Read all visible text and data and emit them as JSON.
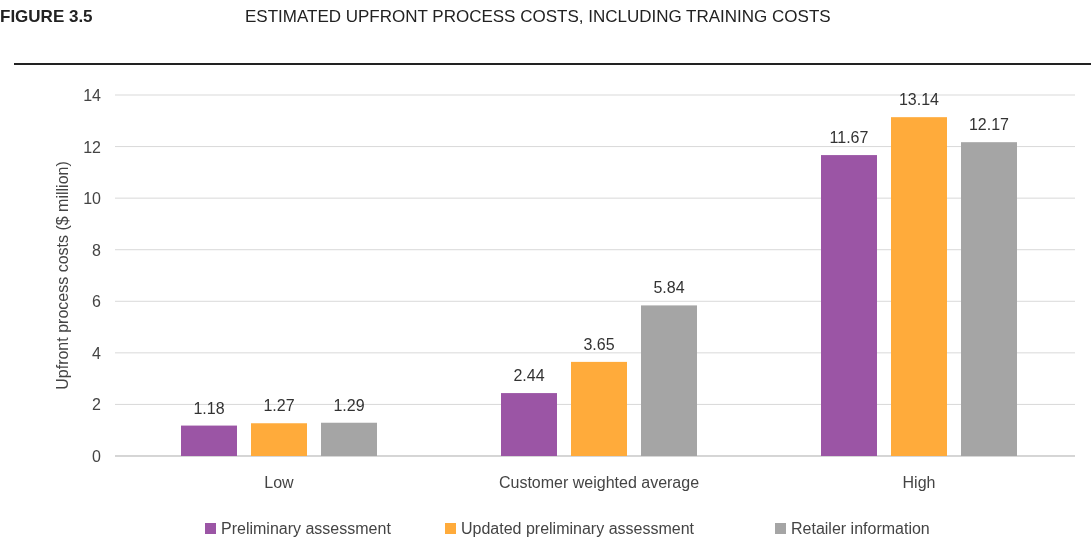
{
  "chart_data": {
    "type": "bar",
    "title": "FIGURE 3.5",
    "subtitle": "ESTIMATED UPFRONT PROCESS COSTS, INCLUDING TRAINING COSTS",
    "ylabel": "Upfront process costs ($ million)",
    "categories": [
      "Low",
      "Customer weighted average",
      "High"
    ],
    "series": [
      {
        "name": "Preliminary assessment",
        "color": "#9b55a5",
        "values": [
          1.18,
          2.44,
          11.67
        ]
      },
      {
        "name": "Updated preliminary assessment",
        "color": "#ffab3b",
        "values": [
          1.27,
          3.65,
          13.14
        ]
      },
      {
        "name": "Retailer information",
        "color": "#a5a5a5",
        "values": [
          1.29,
          5.84,
          12.17
        ]
      }
    ],
    "ylim": [
      0,
      14
    ],
    "yticks": [
      0,
      2,
      4,
      6,
      8,
      10,
      12,
      14
    ],
    "grid": "y",
    "legend": "bottom",
    "data_labels": true
  }
}
